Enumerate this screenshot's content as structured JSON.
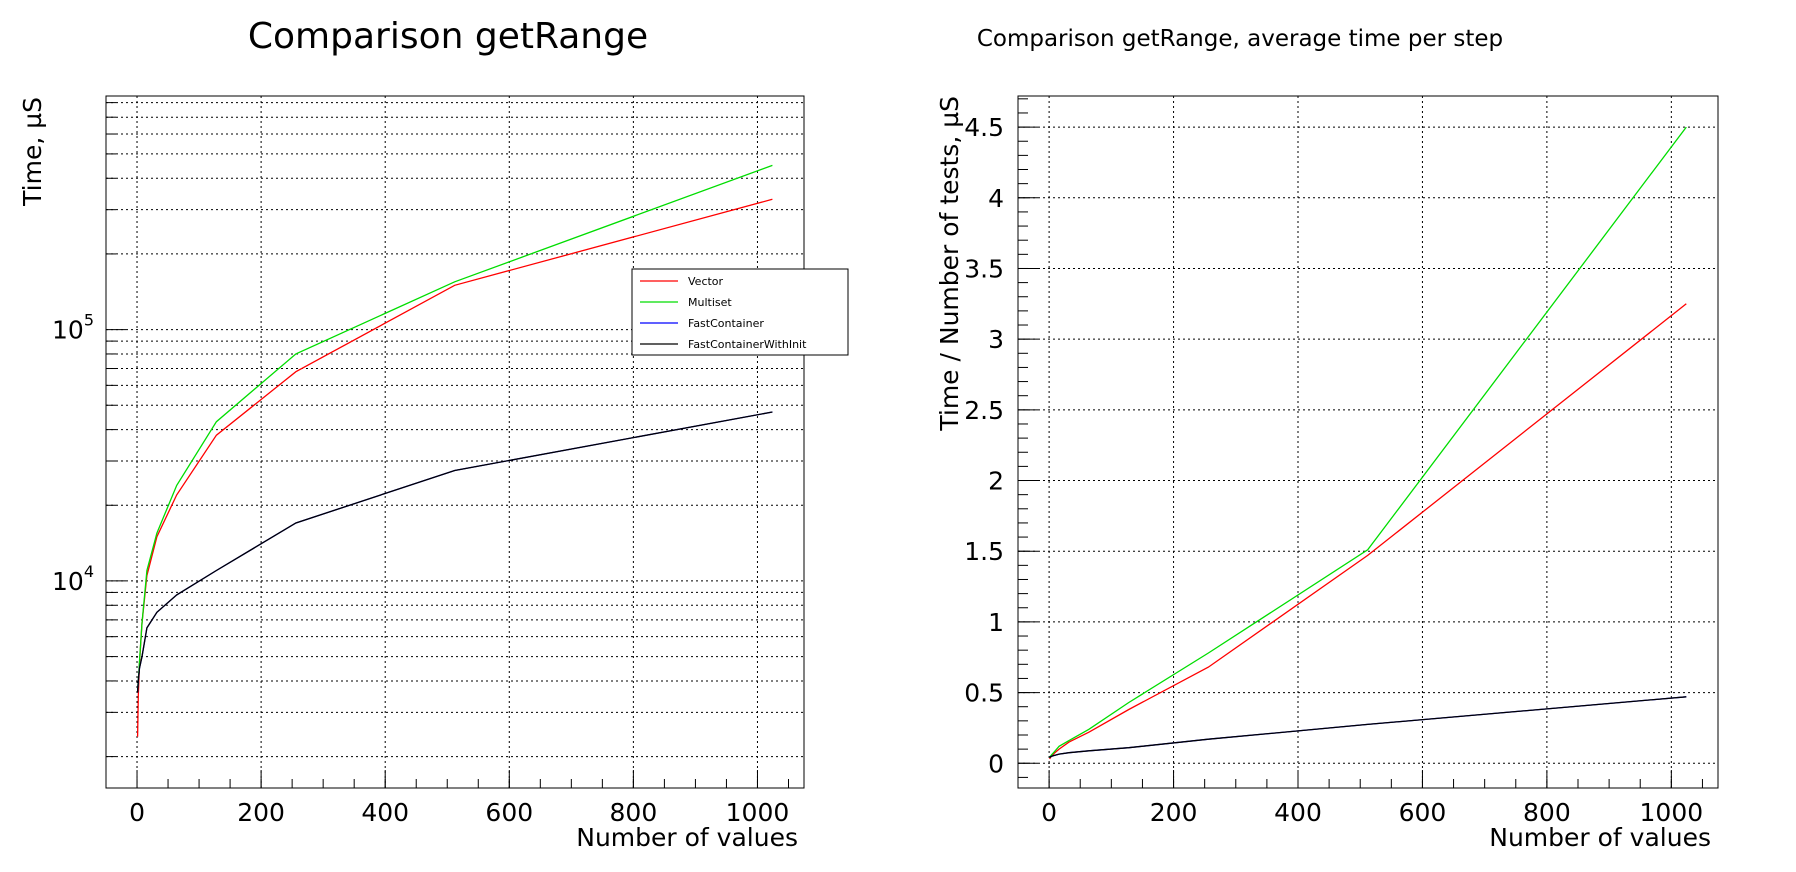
{
  "chart_data": [
    {
      "type": "line",
      "title": "Comparison getRange",
      "xlabel": "Number of values",
      "ylabel": "Time, µS",
      "yscale": "log",
      "xlim": [
        -50,
        1075
      ],
      "ylim": [
        1500,
        850000
      ],
      "grid": true,
      "x_ticks": [
        0,
        200,
        400,
        600,
        800,
        1000
      ],
      "x_tick_labels": [
        "0",
        "200",
        "400",
        "600",
        "800",
        "1000"
      ],
      "y_ticks": [
        {
          "value": 10000,
          "base": "10",
          "exp": "4"
        },
        {
          "value": 100000,
          "base": "10",
          "exp": "5"
        }
      ],
      "legend_position": "right-middle",
      "x": [
        1,
        2,
        4,
        8,
        16,
        32,
        64,
        128,
        256,
        512,
        1024
      ],
      "series": [
        {
          "name": "Vector",
          "color": "#ff0000",
          "values": [
            2400,
            3500,
            4700,
            6800,
            10500,
            15000,
            22000,
            38000,
            68000,
            150000,
            330000
          ]
        },
        {
          "name": "Multiset",
          "color": "#00dd00",
          "values": [
            3700,
            4000,
            4800,
            6800,
            11000,
            15500,
            24000,
            43000,
            80000,
            155000,
            450000
          ]
        },
        {
          "name": "FastContainer",
          "color": "#0000ff",
          "values": [
            3600,
            4000,
            4500,
            5000,
            6500,
            7500,
            8800,
            11000,
            17000,
            27500,
            47000
          ]
        },
        {
          "name": "FastContainerWithInit",
          "color": "#000000",
          "values": [
            3600,
            4000,
            4500,
            5000,
            6500,
            7500,
            8800,
            11000,
            17000,
            27500,
            47000
          ]
        }
      ]
    },
    {
      "type": "line",
      "title": "Comparison getRange, average time per step",
      "xlabel": "Number of values",
      "ylabel": "Time / Number of tests,  µS",
      "yscale": "linear",
      "xlim": [
        -50,
        1075
      ],
      "ylim": [
        -0.175,
        4.72
      ],
      "grid": true,
      "x_ticks": [
        0,
        200,
        400,
        600,
        800,
        1000
      ],
      "x_tick_labels": [
        "0",
        "200",
        "400",
        "600",
        "800",
        "1000"
      ],
      "y_ticks": [
        0,
        0.5,
        1,
        1.5,
        2,
        2.5,
        3,
        3.5,
        4,
        4.5
      ],
      "y_tick_labels": [
        "0",
        "0.5",
        "1",
        "1.5",
        "2",
        "2.5",
        "3",
        "3.5",
        "4",
        "4.5"
      ],
      "x": [
        1,
        2,
        4,
        8,
        16,
        32,
        64,
        128,
        256,
        512,
        1024
      ],
      "series": [
        {
          "name": "Vector",
          "color": "#ff0000",
          "values": [
            0.03,
            0.04,
            0.05,
            0.07,
            0.1,
            0.15,
            0.22,
            0.38,
            0.68,
            1.47,
            3.25
          ]
        },
        {
          "name": "Multiset",
          "color": "#00dd00",
          "values": [
            0.04,
            0.05,
            0.06,
            0.08,
            0.12,
            0.16,
            0.24,
            0.43,
            0.78,
            1.51,
            4.5
          ]
        },
        {
          "name": "FastContainer",
          "color": "#0000ff",
          "values": [
            0.04,
            0.045,
            0.05,
            0.055,
            0.065,
            0.075,
            0.088,
            0.11,
            0.17,
            0.275,
            0.47
          ]
        },
        {
          "name": "FastContainerWithInit",
          "color": "#000000",
          "values": [
            0.04,
            0.045,
            0.05,
            0.055,
            0.065,
            0.075,
            0.088,
            0.11,
            0.17,
            0.275,
            0.47
          ]
        }
      ]
    }
  ]
}
